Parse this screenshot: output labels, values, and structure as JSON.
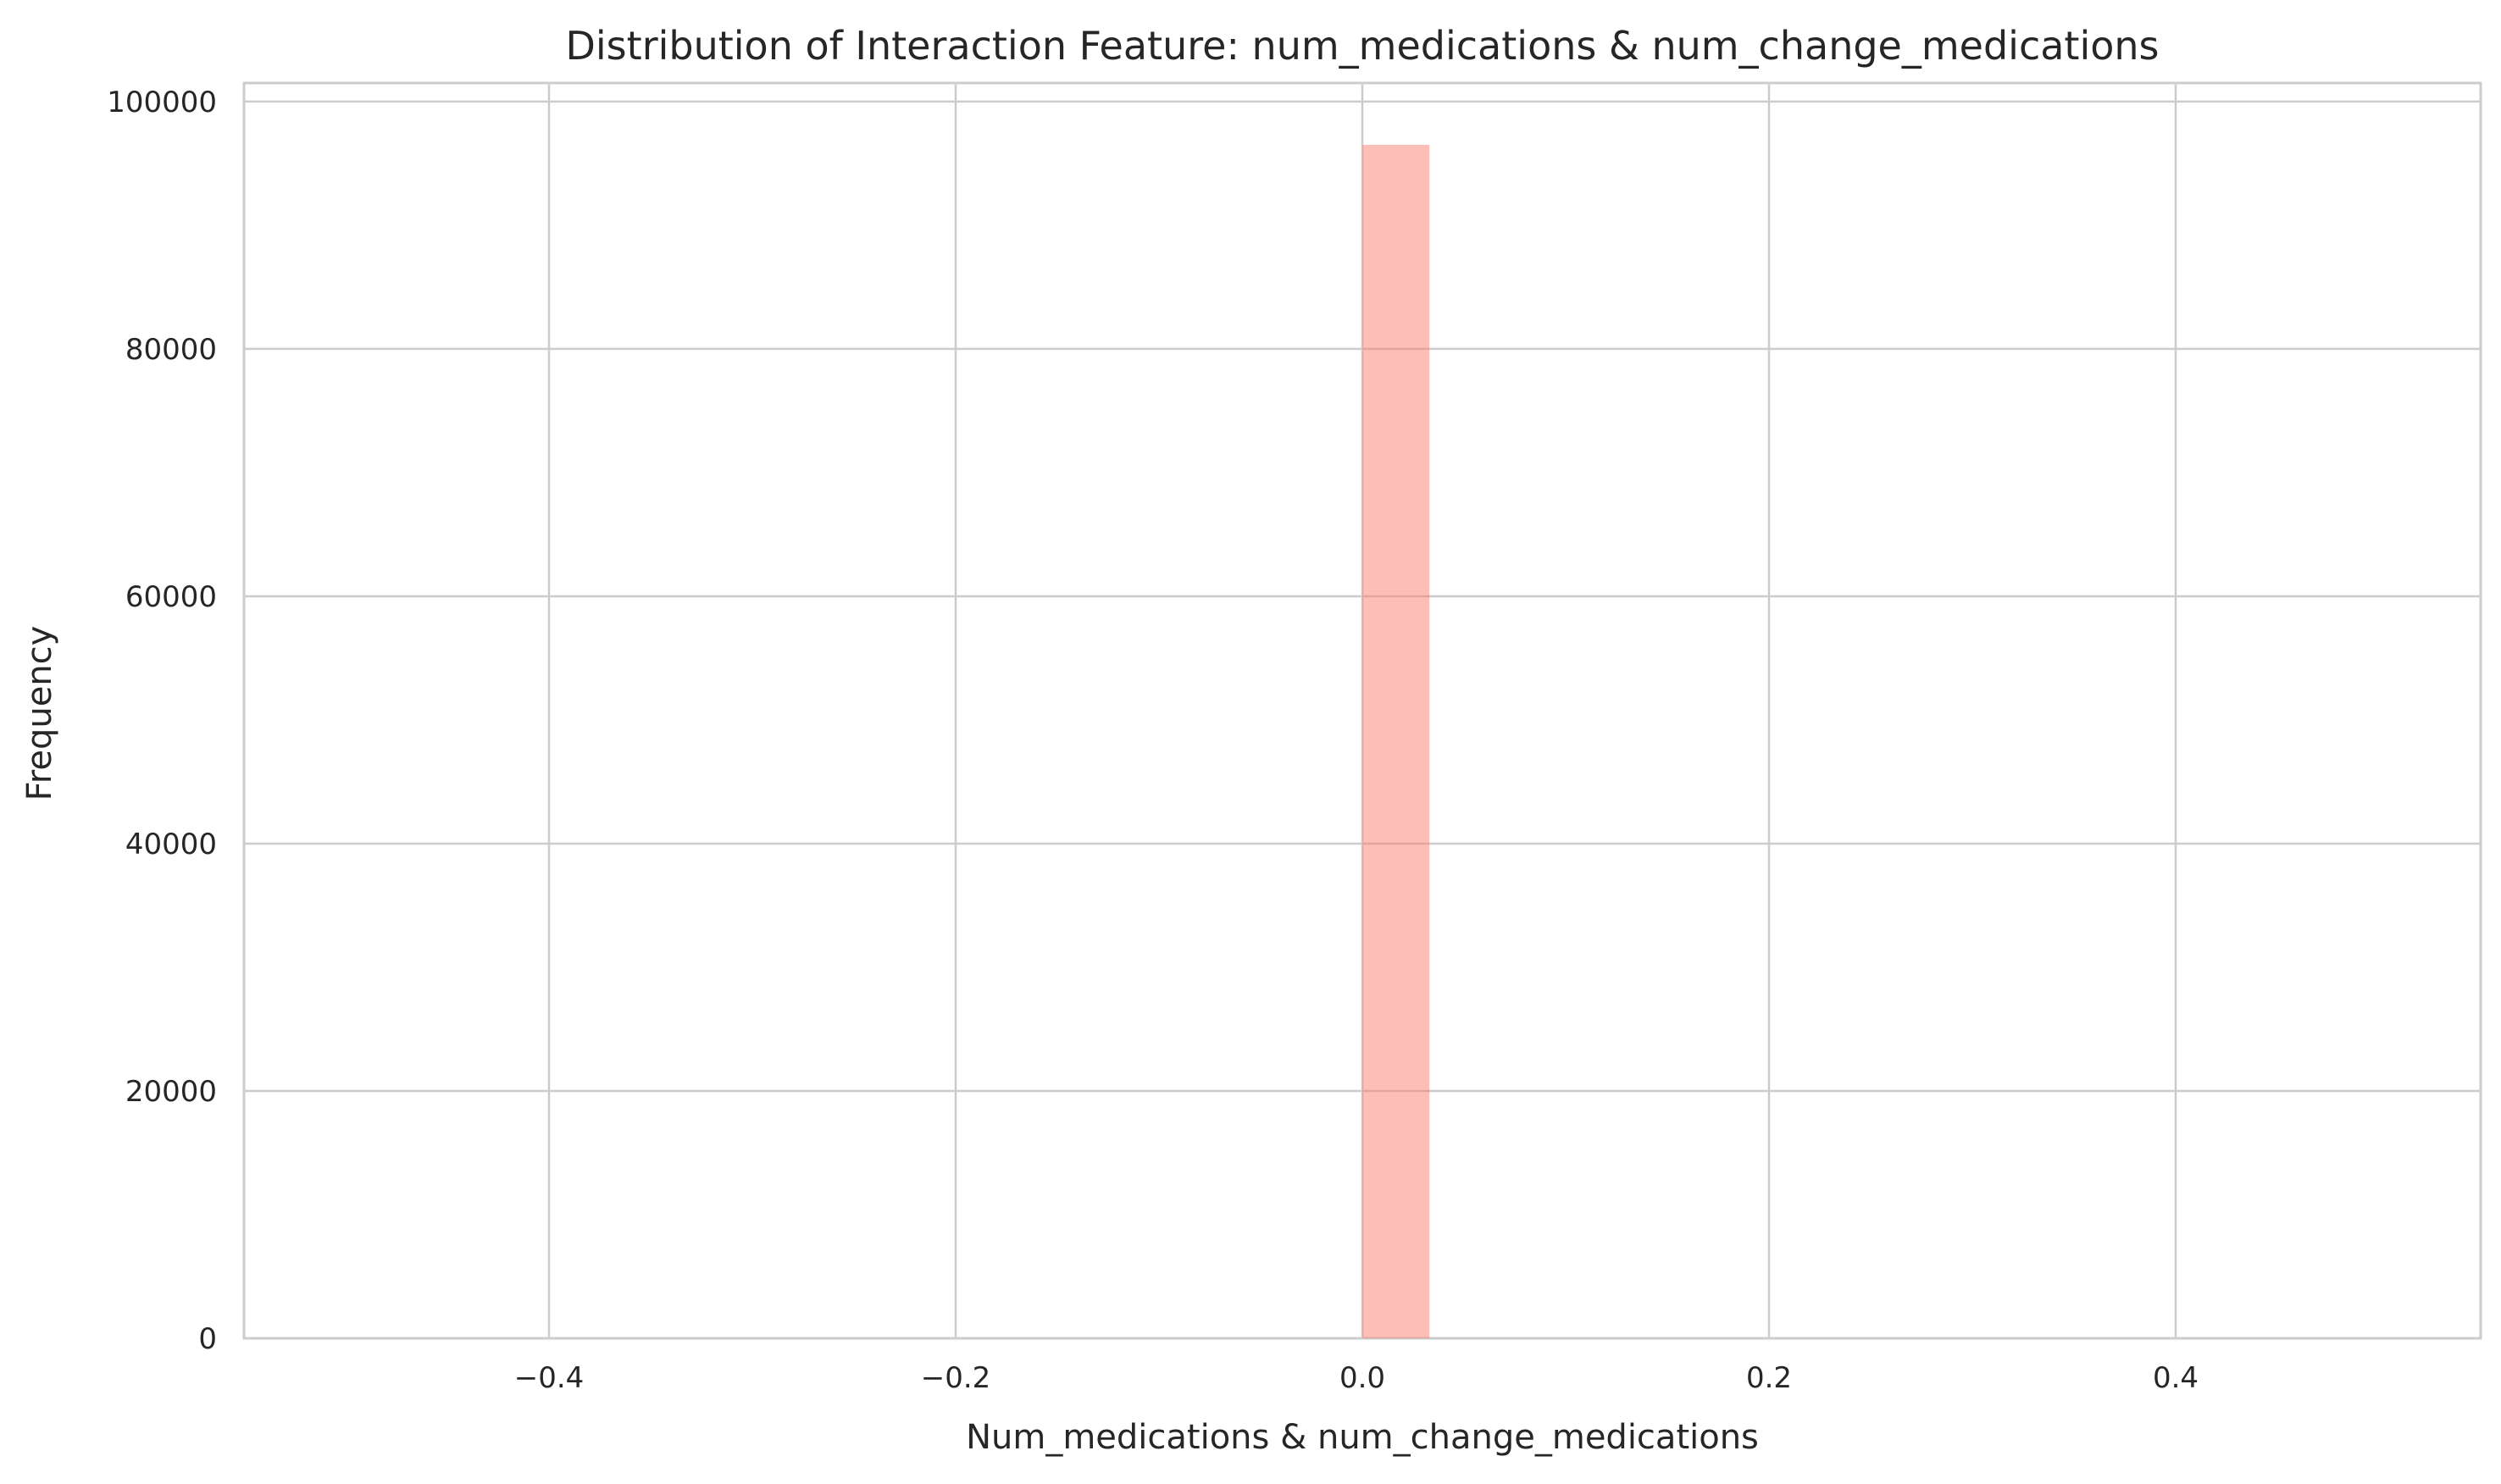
{
  "chart_data": {
    "type": "bar",
    "title": "Distribution of Interaction Feature: num_medications & num_change_medications",
    "xlabel": "Num_medications & num_change_medications",
    "ylabel": "Frequency",
    "xlim": [
      -0.55,
      0.55
    ],
    "ylim": [
      0,
      101500
    ],
    "xticks": [
      -0.4,
      -0.2,
      0.0,
      0.2,
      0.4
    ],
    "xtick_labels": [
      "−0.4",
      "−0.2",
      "0.0",
      "0.2",
      "0.4"
    ],
    "yticks": [
      0,
      20000,
      40000,
      60000,
      80000,
      100000
    ],
    "ytick_labels": [
      "0",
      "20000",
      "40000",
      "60000",
      "80000",
      "100000"
    ],
    "bins": [
      {
        "x_start": 0.0,
        "x_end": 0.033,
        "count": 96500
      }
    ],
    "bar_color": "#fa8072",
    "bar_opacity": 0.5,
    "grid": true,
    "legend": "none"
  }
}
